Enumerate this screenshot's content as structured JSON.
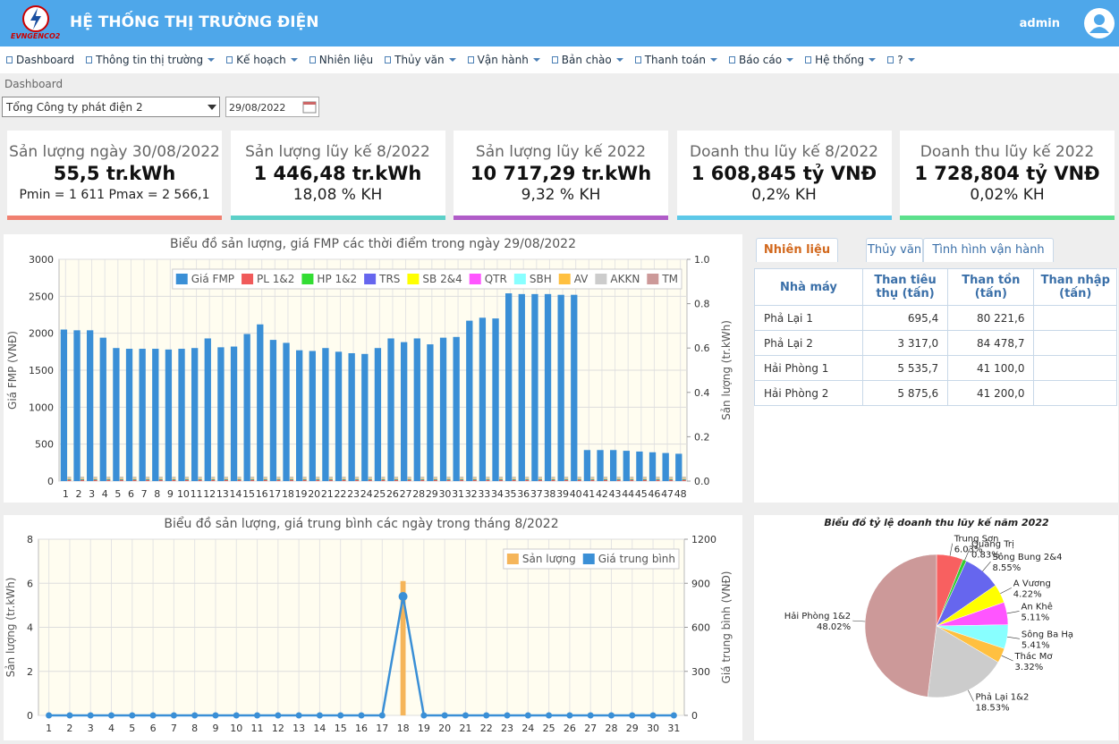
{
  "header": {
    "logo": "EVNGENCO2",
    "title": "HỆ THỐNG THỊ TRƯỜNG ĐIỆN",
    "user": "admin"
  },
  "nav": [
    "Dashboard",
    "Thông tin thị trường",
    "Kế hoạch",
    "Nhiên liệu",
    "Thủy văn",
    "Vận hành",
    "Bản chào",
    "Thanh toán",
    "Báo cáo",
    "Hệ thống",
    "?"
  ],
  "breadcrumb": "Dashboard",
  "filters": {
    "company": "Tổng Công ty phát điện 2",
    "date": "29/08/2022"
  },
  "kpis": [
    {
      "title": "Sản lượng ngày 30/08/2022",
      "value": "55,5 tr.kWh",
      "sub": "Pmin = 1 611 Pmax = 2 566,1"
    },
    {
      "title": "Sản lượng lũy kế 8/2022",
      "value": "1 446,48 tr.kWh",
      "sub": "18,08 % KH"
    },
    {
      "title": "Sản lượng lũy kế 2022",
      "value": "10 717,29 tr.kWh",
      "sub": "9,32 % KH"
    },
    {
      "title": "Doanh thu lũy kế 8/2022",
      "value": "1 608,845 tỷ VNĐ",
      "sub": "0,2% KH"
    },
    {
      "title": "Doanh thu lũy kế 2022",
      "value": "1 728,804 tỷ VNĐ",
      "sub": "0,02% KH"
    }
  ],
  "tabs": [
    "Nhiên liệu",
    "Thủy văn",
    "Tình hình vận hành"
  ],
  "table": {
    "columns": [
      "Nhà máy",
      "Than tiêu thụ (tấn)",
      "Than tồn (tấn)",
      "Than nhập (tấn)"
    ],
    "rows": [
      [
        "Phả Lại 1",
        "695,4",
        "80 221,6"
      ],
      [
        "Phả Lại 2",
        "3 317,0",
        "84 478,7"
      ],
      [
        "Hải Phòng 1",
        "5 535,7",
        "41 100,0"
      ],
      [
        "Hải Phòng 2",
        "5 875,6",
        "41 200,0"
      ]
    ]
  },
  "chart_data": [
    {
      "type": "bar",
      "title": "Biểu đồ sản lượng, giá FMP các thời điểm trong ngày 29/08/2022",
      "ylabel": "Giá FMP (VNĐ)",
      "y2label": "Sản lượng (tr.kWh)",
      "categories": [
        1,
        2,
        3,
        4,
        5,
        6,
        7,
        8,
        9,
        10,
        11,
        12,
        13,
        14,
        15,
        16,
        17,
        18,
        19,
        20,
        21,
        22,
        23,
        24,
        25,
        26,
        27,
        28,
        29,
        30,
        31,
        32,
        33,
        34,
        35,
        36,
        37,
        38,
        39,
        40,
        41,
        42,
        43,
        44,
        45,
        46,
        47,
        48
      ],
      "ylim": [
        0,
        3000
      ],
      "yticks": [
        0,
        500,
        1000,
        1500,
        2000,
        2500,
        3000
      ],
      "y2lim": [
        0,
        1
      ],
      "y2ticks": [
        {
          "value": 0,
          "label": "0.0"
        },
        0.2,
        0.4,
        0.6,
        0.8,
        {
          "value": 1,
          "label": "1.0"
        }
      ],
      "grid": true,
      "legend": "top-right",
      "series": [
        {
          "name": "Giá FMP",
          "color": "#3a8fd6",
          "values": [
            2050,
            2040,
            2040,
            1940,
            1800,
            1790,
            1790,
            1790,
            1780,
            1790,
            1800,
            1930,
            1810,
            1820,
            1990,
            2120,
            1910,
            1870,
            1770,
            1760,
            1800,
            1750,
            1730,
            1720,
            1800,
            1930,
            1880,
            1930,
            1850,
            1940,
            1950,
            2170,
            2210,
            2200,
            2540,
            2530,
            2530,
            2530,
            2520,
            2520,
            420,
            420,
            420,
            410,
            400,
            390,
            380,
            370
          ]
        },
        {
          "name": "PL 1&2",
          "color": "#f05a5a",
          "axis": "y2",
          "values": [
            0.004,
            0.004,
            0.004,
            0.004,
            0.004,
            0.004,
            0.004,
            0.004,
            0.004,
            0.004,
            0.004,
            0.004,
            0.004,
            0.004,
            0.004,
            0.004,
            0.004,
            0.004,
            0.004,
            0.004,
            0.004,
            0.004,
            0.004,
            0.004,
            0.004,
            0.004,
            0.004,
            0.004,
            0.004,
            0.004,
            0.004,
            0.004,
            0.004,
            0.004,
            0.004,
            0.004,
            0.004,
            0.004,
            0.004,
            0.004,
            0.004,
            0.004,
            0.004,
            0.004,
            0.004,
            0.004,
            0.004,
            0.004
          ]
        },
        {
          "name": "HP 1&2",
          "color": "#33dd33",
          "axis": "y2",
          "values": [
            0.002,
            0.002,
            0.002,
            0.002,
            0.002,
            0.002,
            0.002,
            0.002,
            0.002,
            0.002,
            0.002,
            0.002,
            0.002,
            0.002,
            0.002,
            0.002,
            0.002,
            0.002,
            0.002,
            0.002,
            0.002,
            0.002,
            0.002,
            0.002,
            0.002,
            0.002,
            0.002,
            0.002,
            0.002,
            0.002,
            0.002,
            0.002,
            0.002,
            0.002,
            0.002,
            0.002,
            0.002,
            0.002,
            0.002,
            0.002,
            0.002,
            0.002,
            0.002,
            0.002,
            0.002,
            0.002,
            0.002,
            0.002
          ]
        },
        {
          "name": "TRS",
          "color": "#6666ee",
          "axis": "y2",
          "values": [
            0.002,
            0.002,
            0.002,
            0.002,
            0.002,
            0.002,
            0.002,
            0.002,
            0.002,
            0.002,
            0.002,
            0.002,
            0.002,
            0.002,
            0.002,
            0.002,
            0.002,
            0.002,
            0.002,
            0.002,
            0.002,
            0.002,
            0.002,
            0.002,
            0.002,
            0.002,
            0.002,
            0.002,
            0.002,
            0.002,
            0.002,
            0.002,
            0.002,
            0.002,
            0.002,
            0.002,
            0.002,
            0.002,
            0.002,
            0.002,
            0.002,
            0.002,
            0.002,
            0.002,
            0.002,
            0.002,
            0.002,
            0.002
          ]
        },
        {
          "name": "SB 2&4",
          "color": "#ffff00",
          "axis": "y2",
          "values": [
            0.002,
            0.002,
            0.002,
            0.002,
            0.002,
            0.002,
            0.002,
            0.002,
            0.002,
            0.002,
            0.002,
            0.002,
            0.002,
            0.002,
            0.002,
            0.002,
            0.002,
            0.002,
            0.002,
            0.002,
            0.002,
            0.002,
            0.002,
            0.002,
            0.002,
            0.002,
            0.002,
            0.002,
            0.002,
            0.002,
            0.002,
            0.002,
            0.002,
            0.002,
            0.002,
            0.002,
            0.002,
            0.002,
            0.002,
            0.002,
            0.002,
            0.002,
            0.002,
            0.002,
            0.002,
            0.002,
            0.002,
            0.002
          ]
        },
        {
          "name": "QTR",
          "color": "#ff55ff",
          "axis": "y2",
          "values": [
            0.002,
            0.002,
            0.002,
            0.002,
            0.002,
            0.002,
            0.002,
            0.002,
            0.002,
            0.002,
            0.002,
            0.002,
            0.002,
            0.002,
            0.002,
            0.002,
            0.002,
            0.002,
            0.002,
            0.002,
            0.002,
            0.002,
            0.002,
            0.002,
            0.002,
            0.002,
            0.002,
            0.002,
            0.002,
            0.002,
            0.002,
            0.002,
            0.002,
            0.002,
            0.002,
            0.002,
            0.002,
            0.002,
            0.002,
            0.002,
            0.002,
            0.002,
            0.002,
            0.002,
            0.002,
            0.002,
            0.002,
            0.002
          ]
        },
        {
          "name": "SBH",
          "color": "#88ffff",
          "axis": "y2",
          "values": [
            0.002,
            0.002,
            0.002,
            0.002,
            0.002,
            0.002,
            0.002,
            0.002,
            0.002,
            0.002,
            0.002,
            0.002,
            0.002,
            0.002,
            0.002,
            0.002,
            0.002,
            0.002,
            0.002,
            0.002,
            0.002,
            0.002,
            0.002,
            0.002,
            0.002,
            0.002,
            0.002,
            0.002,
            0.002,
            0.002,
            0.002,
            0.002,
            0.002,
            0.002,
            0.002,
            0.002,
            0.002,
            0.002,
            0.002,
            0.002,
            0.002,
            0.002,
            0.002,
            0.002,
            0.002,
            0.002,
            0.002,
            0.002
          ]
        },
        {
          "name": "AV",
          "color": "#ffc040",
          "axis": "y2",
          "values": [
            0.002,
            0.002,
            0.002,
            0.002,
            0.002,
            0.002,
            0.002,
            0.002,
            0.002,
            0.002,
            0.002,
            0.002,
            0.002,
            0.002,
            0.002,
            0.002,
            0.002,
            0.002,
            0.002,
            0.002,
            0.002,
            0.002,
            0.002,
            0.002,
            0.002,
            0.002,
            0.002,
            0.002,
            0.002,
            0.002,
            0.002,
            0.002,
            0.002,
            0.002,
            0.002,
            0.002,
            0.002,
            0.002,
            0.002,
            0.002,
            0.002,
            0.002,
            0.002,
            0.002,
            0.002,
            0.002,
            0.002,
            0.002
          ]
        },
        {
          "name": "AKKN",
          "color": "#cccccc",
          "axis": "y2",
          "values": [
            0.002,
            0.002,
            0.002,
            0.002,
            0.002,
            0.002,
            0.002,
            0.002,
            0.002,
            0.002,
            0.002,
            0.002,
            0.002,
            0.002,
            0.002,
            0.002,
            0.002,
            0.002,
            0.002,
            0.002,
            0.002,
            0.002,
            0.002,
            0.002,
            0.002,
            0.002,
            0.002,
            0.002,
            0.002,
            0.002,
            0.002,
            0.002,
            0.002,
            0.002,
            0.002,
            0.002,
            0.002,
            0.002,
            0.002,
            0.002,
            0.002,
            0.002,
            0.002,
            0.002,
            0.002,
            0.002,
            0.002,
            0.002
          ]
        },
        {
          "name": "TM",
          "color": "#cc9999",
          "axis": "y2",
          "values": [
            0.002,
            0.002,
            0.002,
            0.002,
            0.002,
            0.002,
            0.002,
            0.002,
            0.002,
            0.002,
            0.002,
            0.002,
            0.002,
            0.002,
            0.002,
            0.002,
            0.002,
            0.002,
            0.002,
            0.002,
            0.002,
            0.002,
            0.002,
            0.002,
            0.002,
            0.002,
            0.002,
            0.002,
            0.002,
            0.002,
            0.002,
            0.002,
            0.002,
            0.002,
            0.002,
            0.002,
            0.002,
            0.002,
            0.002,
            0.002,
            0.002,
            0.002,
            0.002,
            0.002,
            0.002,
            0.002,
            0.002,
            0.002
          ]
        }
      ]
    },
    {
      "type": "bar",
      "title": "Biểu đồ sản lượng, giá trung bình các ngày trong tháng 8/2022",
      "ylabel": "Sản lượng (tr.kWh)",
      "y2label": "Giá trung bình (VNĐ)",
      "categories": [
        1,
        2,
        3,
        4,
        5,
        6,
        7,
        8,
        9,
        10,
        11,
        12,
        13,
        14,
        15,
        16,
        17,
        18,
        19,
        20,
        21,
        22,
        23,
        24,
        25,
        26,
        27,
        28,
        29,
        30,
        31
      ],
      "ylim": [
        0,
        8
      ],
      "yticks": [
        0,
        2,
        4,
        6,
        8
      ],
      "y2lim": [
        0,
        1200
      ],
      "y2ticks": [
        0,
        300,
        600,
        900,
        1200
      ],
      "grid": true,
      "legend": "top-right",
      "series": [
        {
          "name": "Sản lượng",
          "color": "#f5b55a",
          "values": [
            0,
            0,
            0,
            0,
            0,
            0,
            0,
            0,
            0,
            0,
            0,
            0,
            0,
            0,
            0,
            0,
            0,
            6.1,
            0,
            0,
            0,
            0,
            0,
            0,
            0,
            0,
            0,
            0,
            0,
            0,
            0
          ]
        },
        {
          "name": "Giá trung bình",
          "color": "#3a8fd6",
          "type": "line",
          "axis": "y2",
          "values": [
            0,
            0,
            0,
            0,
            0,
            0,
            0,
            0,
            0,
            0,
            0,
            0,
            0,
            0,
            0,
            0,
            0,
            810,
            0,
            0,
            0,
            0,
            0,
            0,
            0,
            0,
            0,
            0,
            0,
            0,
            0
          ]
        }
      ]
    },
    {
      "type": "pie",
      "title": "Biểu đồ tỷ lệ doanh thu lũy kế năm 2022",
      "categories": [
        "Trung Sơn",
        "Quảng Trị",
        "Sông Bung 2&4",
        "A Vương",
        "An Khê",
        "Sông Ba Hạ",
        "Thác Mơ",
        "Phả Lại 1&2",
        "Hải Phòng 1&2"
      ],
      "values": [
        6.03,
        0.83,
        8.55,
        4.22,
        5.11,
        5.41,
        3.32,
        18.53,
        48.02
      ],
      "value_labels": [
        "6.03%",
        "0.83%",
        "8.55%",
        "4.22%",
        "5.11%",
        "5.41%",
        "3.32%",
        "18.53%",
        "48.02%"
      ],
      "colors": [
        "#f86060",
        "#33cc33",
        "#6666ee",
        "#ffff00",
        "#ff55ff",
        "#88ffff",
        "#ffc040",
        "#cccccc",
        "#cc9999"
      ]
    }
  ]
}
